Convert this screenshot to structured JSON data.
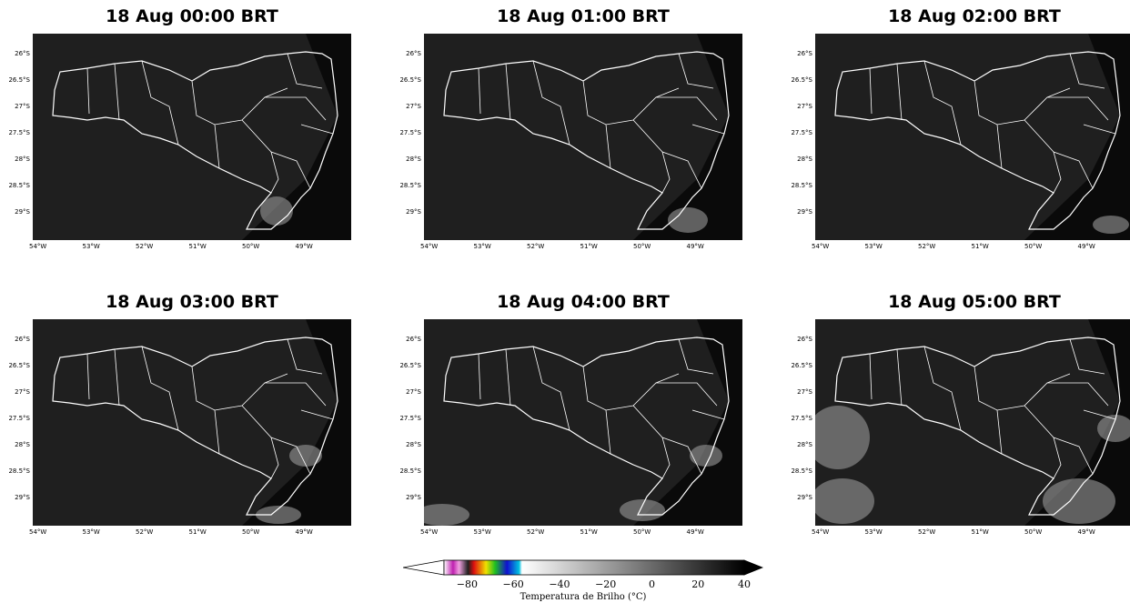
{
  "panels": [
    {
      "title": "18 Aug 00:00 BRT"
    },
    {
      "title": "18 Aug 01:00 BRT"
    },
    {
      "title": "18 Aug 02:00 BRT"
    },
    {
      "title": "18 Aug 03:00 BRT"
    },
    {
      "title": "18 Aug 04:00 BRT"
    },
    {
      "title": "18 Aug 05:00 BRT"
    }
  ],
  "lat_ticks": [
    "26°S",
    "26.5°S",
    "27°S",
    "27.5°S",
    "28°S",
    "28.5°S",
    "29°S"
  ],
  "lon_ticks": [
    "54°W",
    "53°W",
    "52°W",
    "51°W",
    "50°W",
    "49°W"
  ],
  "colorbar": {
    "label": "Temperatura de Brilho (°C)",
    "ticks": [
      "−80",
      "−60",
      "−40",
      "−20",
      "0",
      "20",
      "40"
    ],
    "range": [
      -90,
      40
    ],
    "colors": {
      "magenta": "#c020b0",
      "red": "#e01010",
      "yellow": "#f0e000",
      "green": "#20c020",
      "blue": "#1010d0",
      "cyan": "#00c0e0",
      "white": "#ffffff",
      "black": "#000000"
    }
  }
}
